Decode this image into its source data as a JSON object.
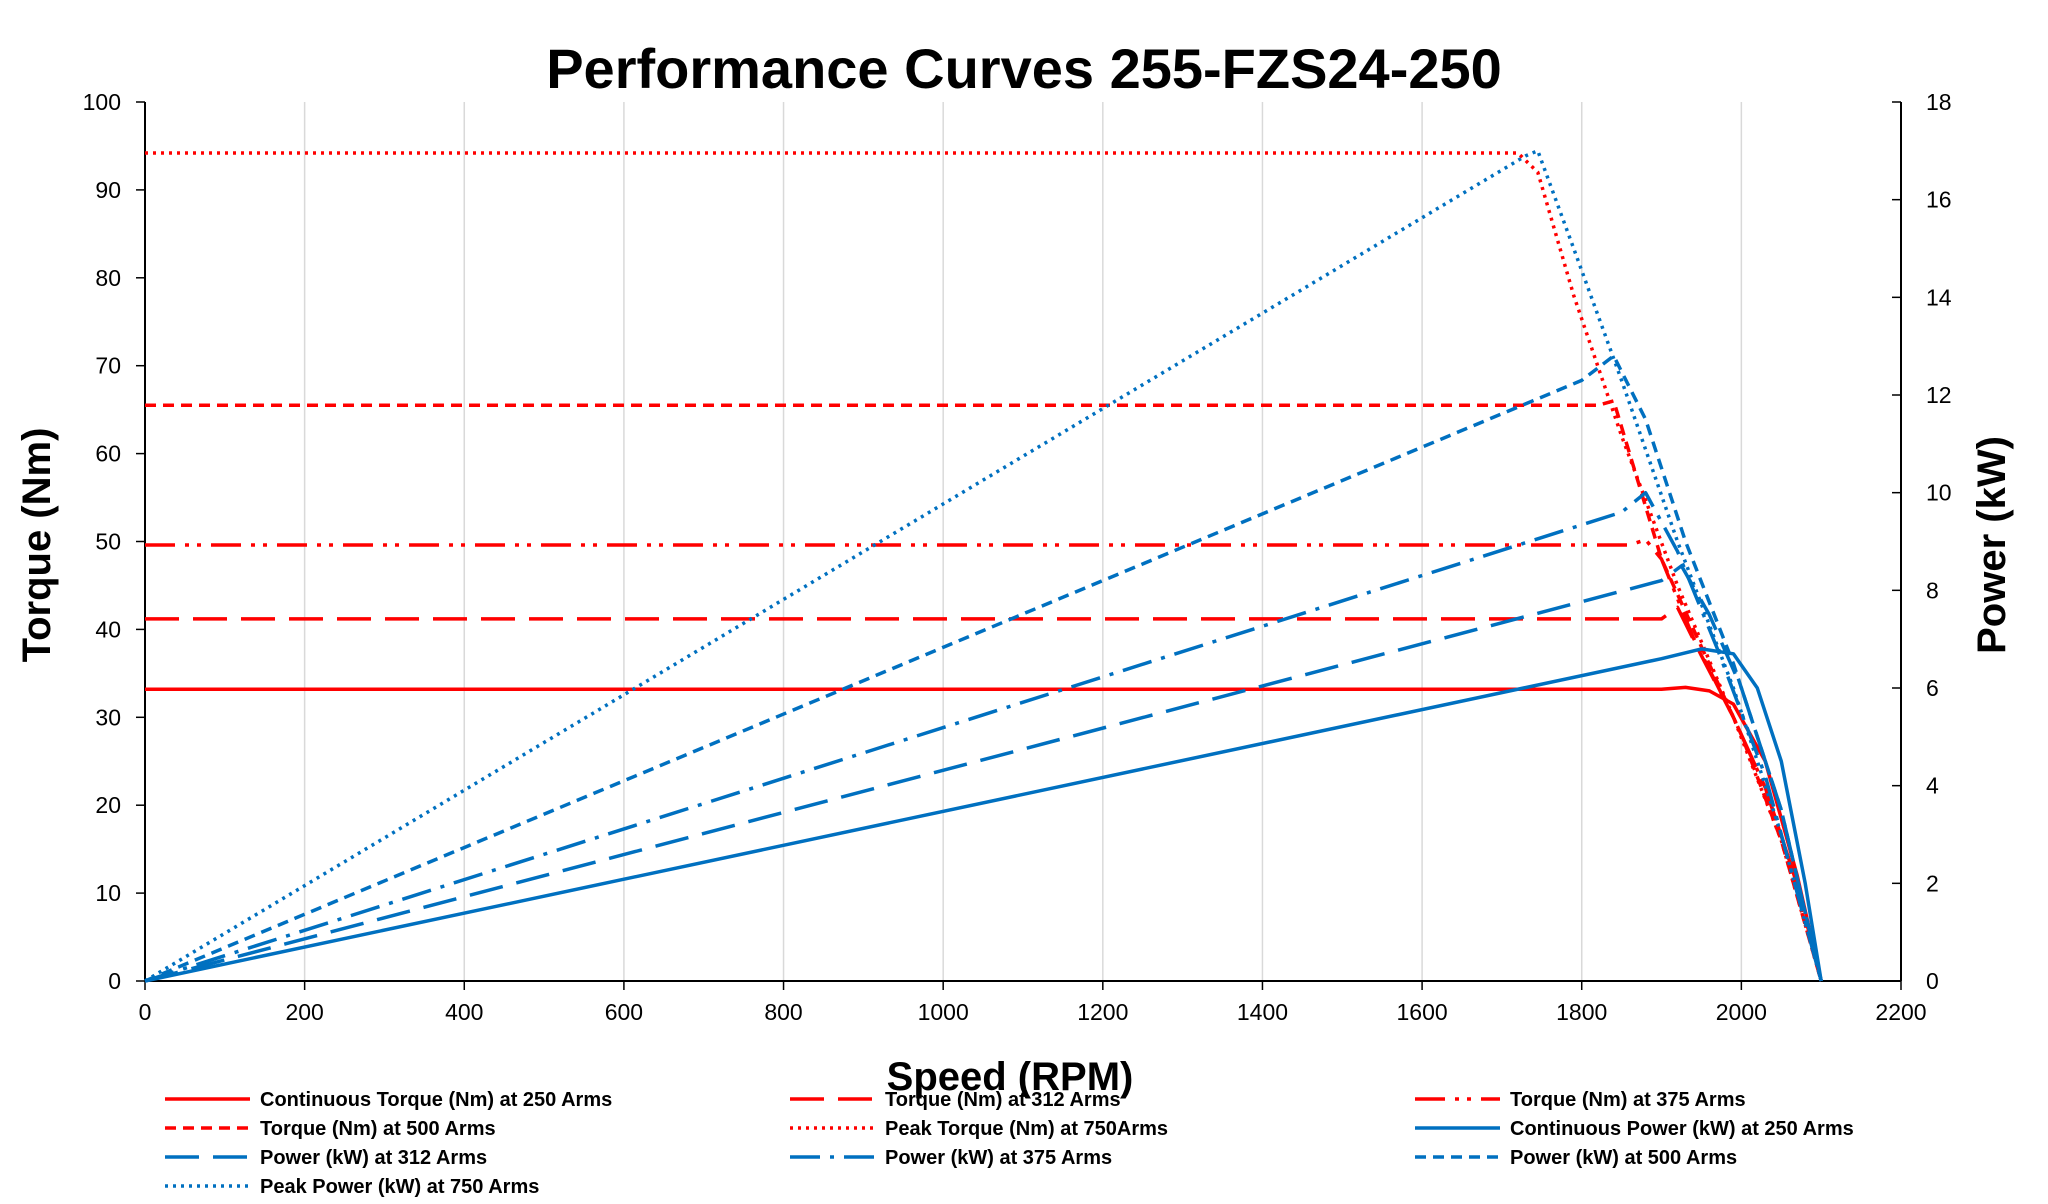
{
  "chart_data": {
    "type": "line",
    "title": "Performance Curves 255-FZS24-250",
    "xlabel": "Speed (RPM)",
    "ylabel_left": "Torque (Nm)",
    "ylabel_right": "Power (kW)",
    "xlim": [
      0,
      2200
    ],
    "ylim_left": [
      0,
      100
    ],
    "ylim_right": [
      0,
      18
    ],
    "x_ticks": [
      "0",
      "200",
      "400",
      "600",
      "800",
      "1000",
      "1200",
      "1400",
      "1600",
      "1800",
      "2000",
      "2200"
    ],
    "y_left_ticks": [
      "0",
      "10",
      "20",
      "30",
      "40",
      "50",
      "60",
      "70",
      "80",
      "90",
      "100"
    ],
    "y_right_ticks": [
      "0",
      "2",
      "4",
      "6",
      "8",
      "10",
      "12",
      "14",
      "16",
      "18"
    ],
    "grid": "vertical",
    "legend_position": "bottom",
    "series": [
      {
        "name": "Continuous Torque (Nm) at 250 Arms",
        "axis": "left",
        "color": "#ff0000",
        "dash": "solid",
        "x": [
          0,
          1900,
          1930,
          1960,
          1990,
          2030,
          2070,
          2100
        ],
        "y": [
          33.2,
          33.2,
          33.4,
          33.0,
          31.5,
          25,
          12,
          0
        ]
      },
      {
        "name": "Torque (Nm) at 312 Arms",
        "axis": "left",
        "color": "#ff0000",
        "dash": "longdash",
        "x": [
          0,
          1900,
          1920,
          1950,
          1990,
          2030,
          2070,
          2100
        ],
        "y": [
          41.2,
          41.2,
          42.5,
          37,
          30,
          22,
          11,
          0
        ]
      },
      {
        "name": "Torque (Nm) at 375 Arms",
        "axis": "left",
        "color": "#ff0000",
        "dash": "dashdotdot",
        "x": [
          0,
          1860,
          1880,
          1900,
          1940,
          1990,
          2030,
          2070,
          2100
        ],
        "y": [
          49.6,
          49.6,
          50.2,
          48,
          39,
          30,
          22,
          11,
          0
        ]
      },
      {
        "name": "Torque (Nm) at 500 Arms",
        "axis": "left",
        "color": "#ff0000",
        "dash": "shortdash",
        "x": [
          0,
          1820,
          1840,
          1860,
          1900,
          1950,
          2000,
          2050,
          2100
        ],
        "y": [
          65.5,
          65.5,
          66.0,
          60,
          48,
          38,
          28,
          16,
          0
        ]
      },
      {
        "name": "Peak Torque (Nm) at 750Arms",
        "axis": "left",
        "color": "#ff0000",
        "dash": "dotted",
        "x": [
          0,
          1720,
          1745,
          1790,
          1850,
          1920,
          1990,
          2050,
          2100
        ],
        "y": [
          94.2,
          94.2,
          92,
          78,
          62,
          45,
          30,
          16,
          0
        ]
      },
      {
        "name": "Continuous Power (kW) at 250 Arms",
        "axis": "right",
        "color": "#0070c0",
        "dash": "solid",
        "x": [
          0,
          1900,
          1950,
          1990,
          2020,
          2050,
          2080,
          2100
        ],
        "y": [
          0,
          6.6,
          6.8,
          6.7,
          6.0,
          4.5,
          2.0,
          0
        ]
      },
      {
        "name": "Power (kW) at 312 Arms",
        "axis": "right",
        "color": "#0070c0",
        "dash": "longdash",
        "x": [
          0,
          1900,
          1925,
          1960,
          2000,
          2050,
          2100
        ],
        "y": [
          0,
          8.2,
          8.5,
          7.5,
          6.0,
          3.5,
          0
        ]
      },
      {
        "name": "Power (kW) at 375 Arms",
        "axis": "right",
        "color": "#0070c0",
        "dash": "dashdot",
        "x": [
          0,
          1850,
          1880,
          1920,
          1970,
          2030,
          2100
        ],
        "y": [
          0,
          9.6,
          10.0,
          8.8,
          6.8,
          4.2,
          0
        ]
      },
      {
        "name": "Power (kW) at 500 Arms",
        "axis": "right",
        "color": "#0070c0",
        "dash": "shortdash",
        "x": [
          0,
          1800,
          1840,
          1880,
          1930,
          1990,
          2050,
          2100
        ],
        "y": [
          0,
          12.3,
          12.8,
          11.5,
          9.0,
          6.5,
          3.5,
          0
        ]
      },
      {
        "name": "Peak Power (kW) at 750 Arms",
        "axis": "right",
        "color": "#0070c0",
        "dash": "dotted",
        "x": [
          0,
          1730,
          1745,
          1790,
          1850,
          1920,
          1990,
          2050,
          2100
        ],
        "y": [
          0,
          16.9,
          17.0,
          15.0,
          12.3,
          9.0,
          6.0,
          3.0,
          0
        ]
      }
    ]
  }
}
